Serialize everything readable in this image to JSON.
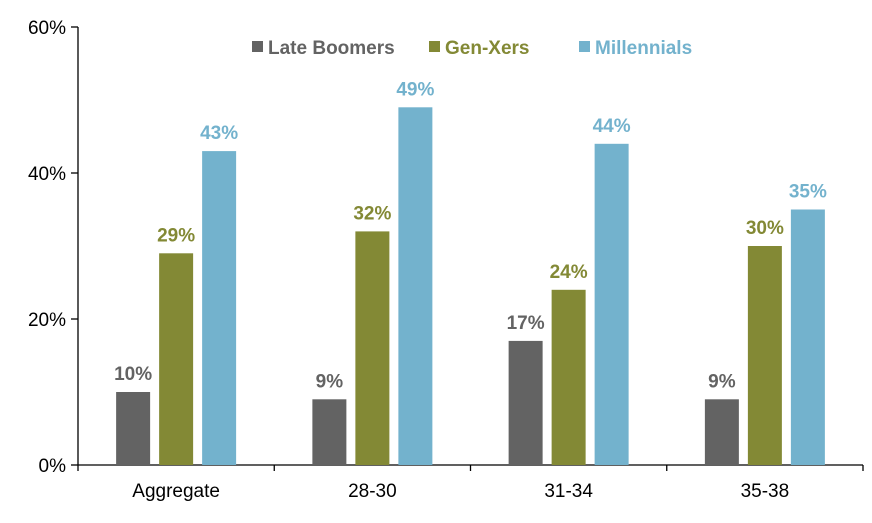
{
  "chart_data": {
    "type": "bar",
    "categories": [
      "Aggregate",
      "28-30",
      "31-34",
      "35-38"
    ],
    "series": [
      {
        "name": "Late Boomers",
        "values": [
          10,
          9,
          17,
          9
        ],
        "labels": [
          "10%",
          "9%",
          "17%",
          "9%"
        ],
        "color": "#636363"
      },
      {
        "name": "Gen-Xers",
        "values": [
          29,
          32,
          24,
          30
        ],
        "labels": [
          "29%",
          "32%",
          "24%",
          "30%"
        ],
        "color": "#838935"
      },
      {
        "name": "Millennials",
        "values": [
          43,
          49,
          44,
          35
        ],
        "labels": [
          "43%",
          "49%",
          "44%",
          "35%"
        ],
        "color": "#73b2cd"
      }
    ],
    "ylim": [
      0,
      60
    ],
    "yticks": [
      0,
      20,
      40,
      60
    ],
    "ytick_labels": [
      "0%",
      "20%",
      "40%",
      "60%"
    ],
    "grid": false,
    "legend_position": "top",
    "title": "",
    "xlabel": "",
    "ylabel": ""
  }
}
